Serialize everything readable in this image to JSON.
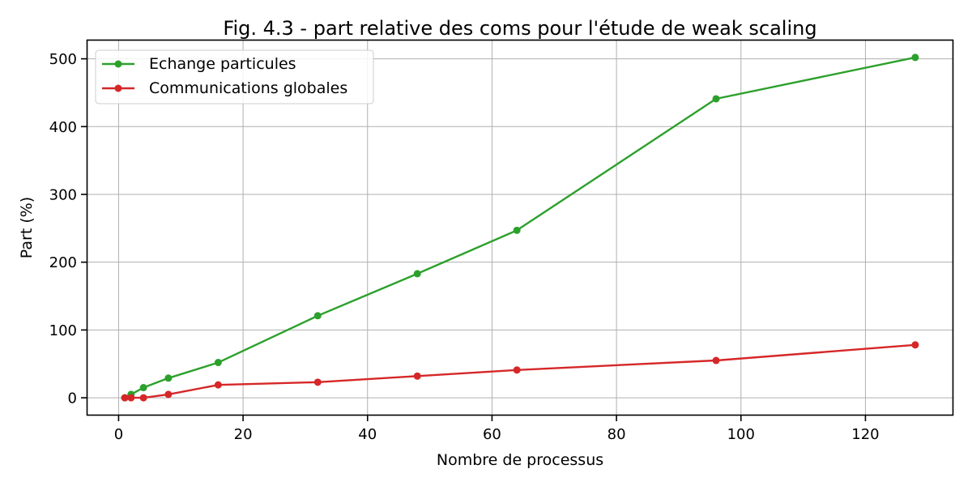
{
  "chart_data": {
    "type": "line",
    "title": "Fig. 4.3 - part relative des coms pour l'étude de weak scaling",
    "xlabel": "Nombre de processus",
    "ylabel": "Part (%)",
    "xlim": [
      -5,
      134
    ],
    "ylim": [
      -25,
      527
    ],
    "xticks": [
      0,
      20,
      40,
      60,
      80,
      100,
      120
    ],
    "yticks": [
      0,
      100,
      200,
      300,
      400,
      500
    ],
    "grid": true,
    "legend_position": "top-left",
    "series": [
      {
        "name": "Echange particules",
        "color": "#2ca02c",
        "x": [
          1,
          2,
          4,
          8,
          16,
          32,
          48,
          64,
          96,
          128
        ],
        "values": [
          0,
          5,
          15,
          29,
          52,
          121,
          183,
          247,
          441,
          502
        ]
      },
      {
        "name": "Communications globales",
        "color": "#d62728",
        "x": [
          1,
          2,
          4,
          8,
          16,
          32,
          48,
          64,
          96,
          128
        ],
        "values": [
          0,
          0,
          0,
          5,
          19,
          23,
          32,
          41,
          55,
          78
        ]
      }
    ]
  }
}
